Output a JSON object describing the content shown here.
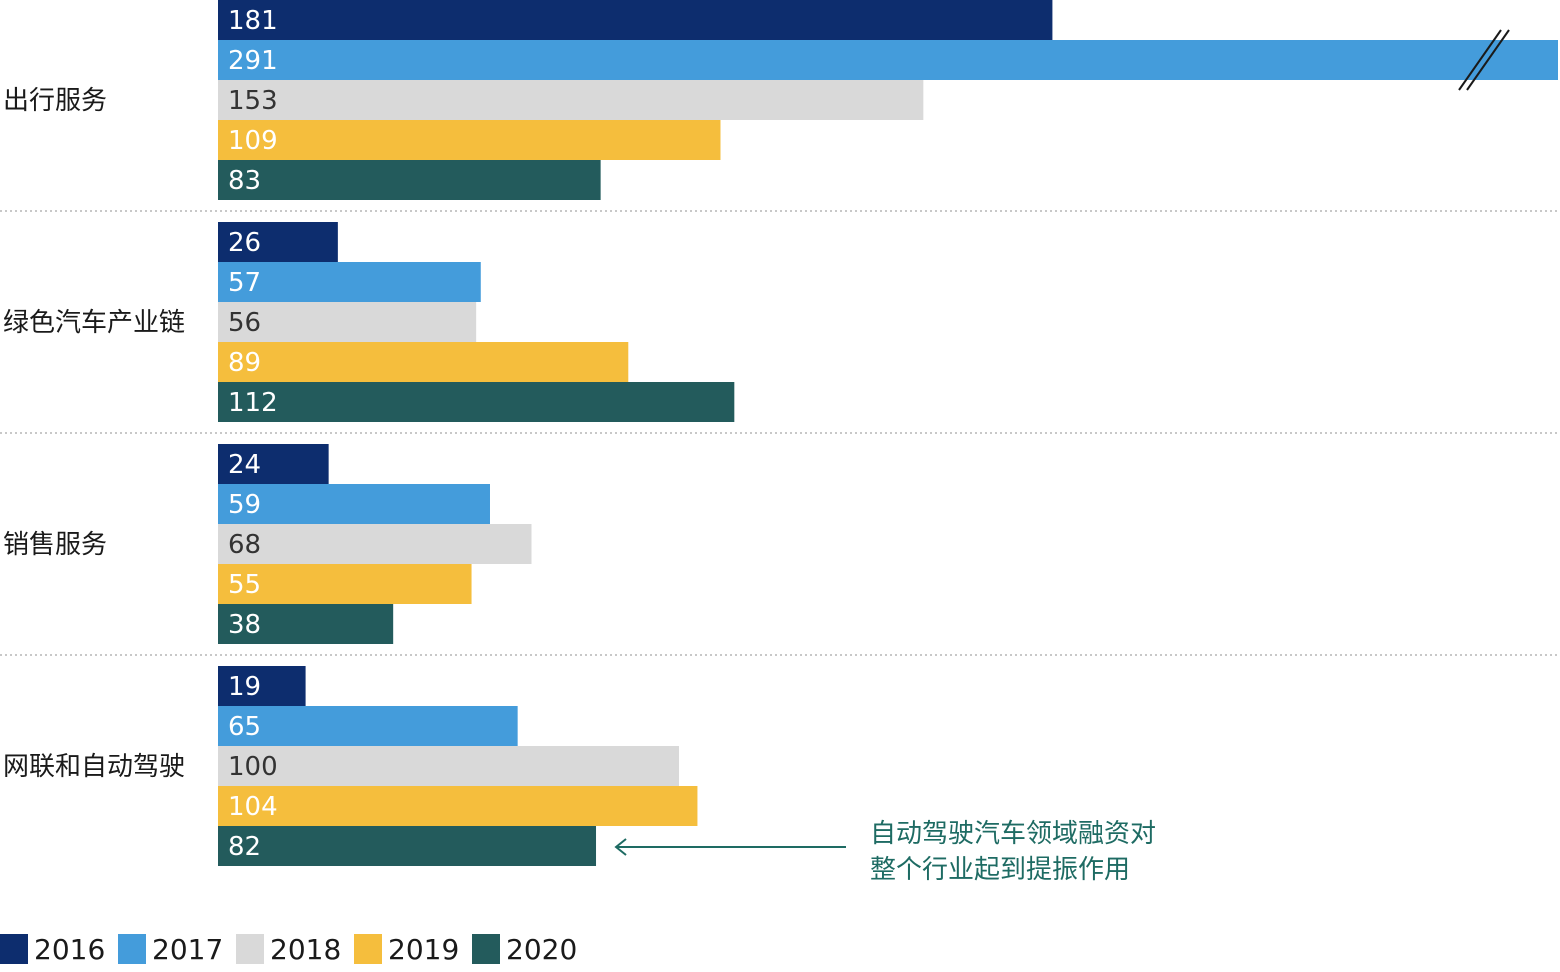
{
  "chart_data": {
    "type": "bar",
    "orientation": "horizontal",
    "categories": [
      "出行服务",
      "绿色汽车产业链",
      "销售服务",
      "网联和自动驾驶"
    ],
    "series": [
      {
        "name": "2016",
        "color": "#0d2d6e",
        "values": [
          181,
          26,
          24,
          19
        ]
      },
      {
        "name": "2017",
        "color": "#449cdb",
        "values": [
          291,
          57,
          59,
          65
        ]
      },
      {
        "name": "2018",
        "color": "#d9d9d9",
        "values": [
          153,
          56,
          68,
          100
        ]
      },
      {
        "name": "2019",
        "color": "#f5be3d",
        "values": [
          109,
          89,
          55,
          104
        ]
      },
      {
        "name": "2020",
        "color": "#235b5c",
        "values": [
          83,
          112,
          38,
          82
        ]
      }
    ],
    "axis_break": {
      "category": "出行服务",
      "series": "2017"
    },
    "annotation": {
      "lines": [
        "自动驾驶汽车领域融资对",
        "整个行业起到提振作用"
      ],
      "color": "#1e6b63",
      "points_to": {
        "category": "网联和自动驾驶",
        "series": "2020"
      }
    },
    "legend_position": "bottom-left",
    "grid": false,
    "category_separators": "dotted"
  }
}
